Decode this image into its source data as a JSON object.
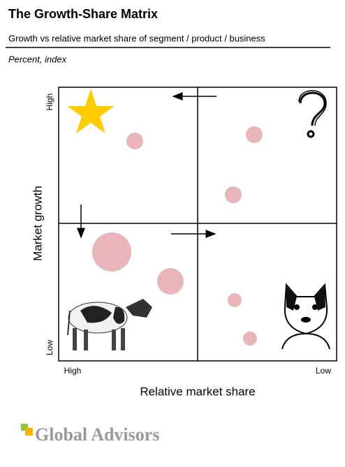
{
  "header": {
    "title": "The Growth-Share Matrix",
    "subtitle": "Growth vs relative market share of segment / product / business",
    "unit": "Percent, index"
  },
  "axes": {
    "y_label": "Market growth",
    "y_high": "High",
    "y_low": "Low",
    "x_label": "Relative market share",
    "x_high": "High",
    "x_low": "Low"
  },
  "footer": {
    "logo": "Global Advisors"
  }
}
